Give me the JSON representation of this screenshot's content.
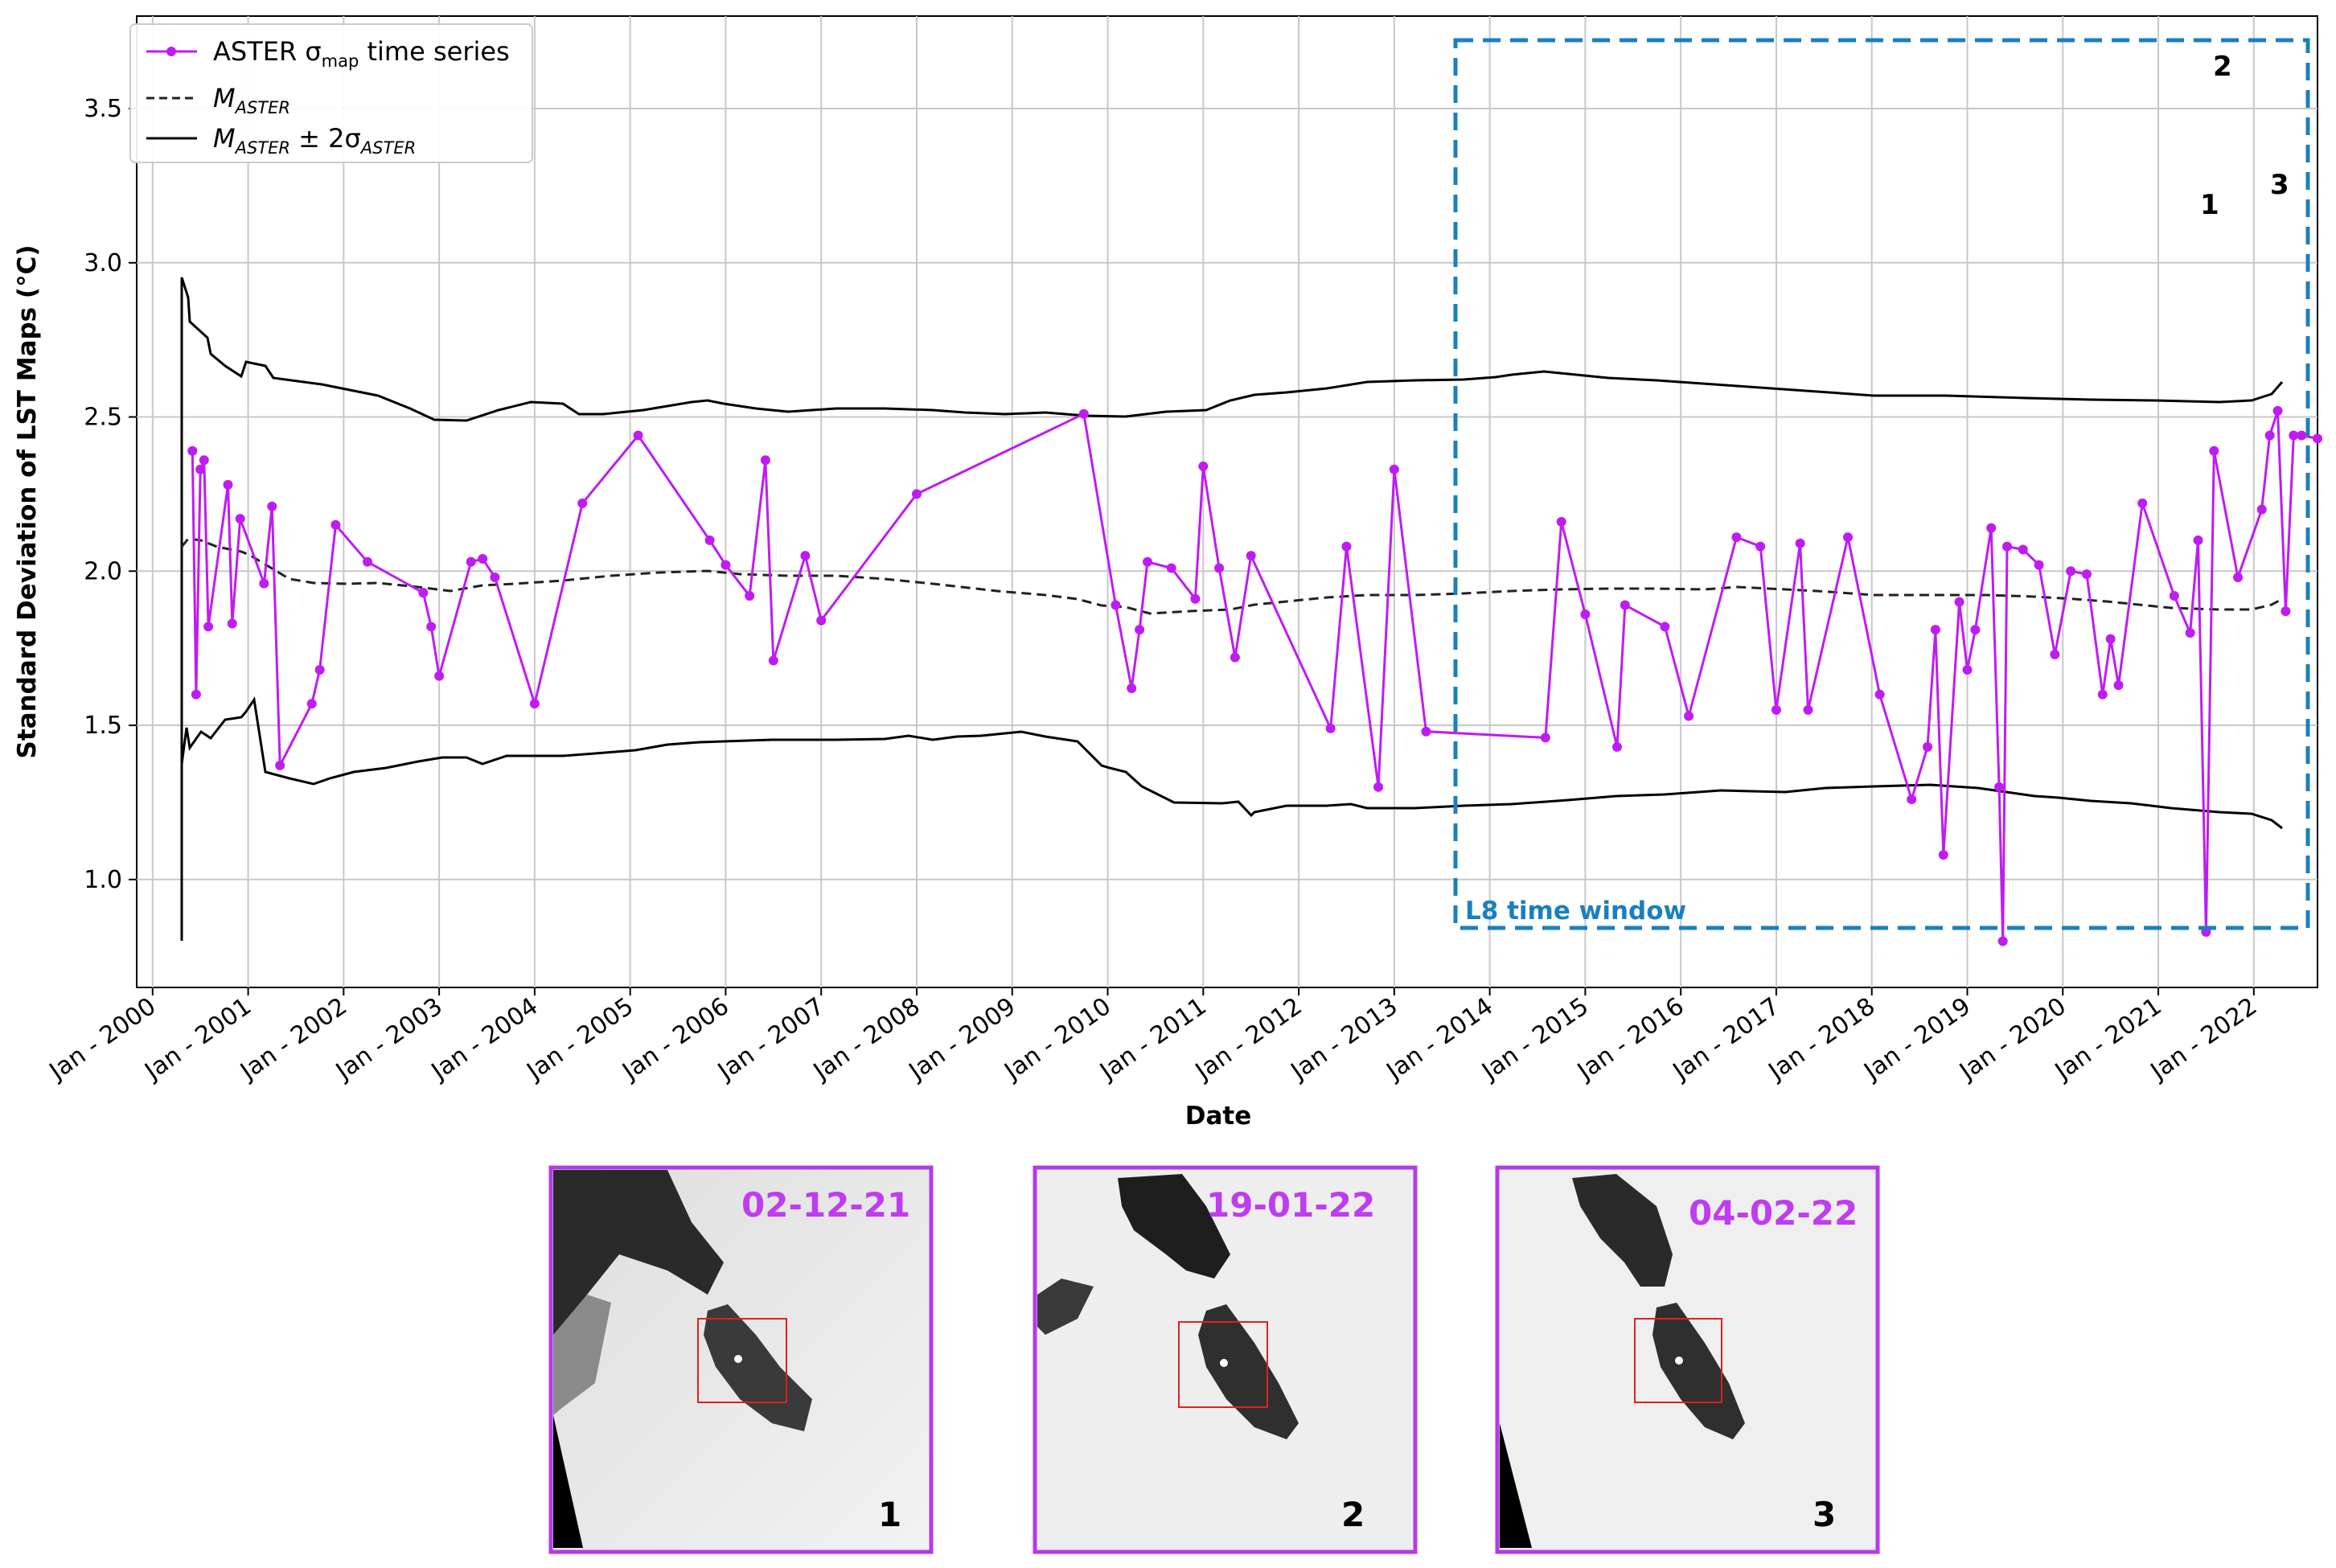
{
  "chart_data": {
    "type": "line",
    "xlabel": "Date",
    "ylabel": "Standard Deviation of LST Maps (°C)",
    "xlim": [
      "1999-11",
      "2022-09"
    ],
    "ylim": [
      0.65,
      3.8
    ],
    "grid": true,
    "legend_position": "top-left",
    "x_ticks": [
      "Jan - 2000",
      "Jan - 2001",
      "Jan - 2002",
      "Jan - 2003",
      "Jan - 2004",
      "Jan - 2005",
      "Jan - 2006",
      "Jan - 2007",
      "Jan - 2008",
      "Jan - 2009",
      "Jan - 2010",
      "Jan - 2011",
      "Jan - 2012",
      "Jan - 2013",
      "Jan - 2014",
      "Jan - 2015",
      "Jan - 2016",
      "Jan - 2017",
      "Jan - 2018",
      "Jan - 2019",
      "Jan - 2020",
      "Jan - 2021",
      "Jan - 2022"
    ],
    "y_ticks": [
      "1.0",
      "1.5",
      "2.0",
      "2.5",
      "3.0",
      "3.5"
    ],
    "legend": [
      {
        "main": "ASTER σ",
        "sub": "map",
        "tail": " time series"
      },
      {
        "main": "M",
        "sub": "ASTER",
        "tail": ""
      },
      {
        "main": "M",
        "sub": "ASTER",
        "tail": " ± 2σ",
        "sub2": "ASTER"
      }
    ],
    "colors": {
      "series": "#bf1cf2",
      "mean": "#222222",
      "bounds": "#000000",
      "window": "#1a7fc0"
    },
    "series": [
      {
        "role": "aster-sigma",
        "points": [
          [
            "2000-06-01",
            2.39
          ],
          [
            "2000-06-15",
            1.6
          ],
          [
            "2000-07-01",
            2.33
          ],
          [
            "2000-07-15",
            2.36
          ],
          [
            "2000-08-01",
            1.82
          ],
          [
            "2000-10-15",
            2.28
          ],
          [
            "2000-11-01",
            1.83
          ],
          [
            "2000-12-01",
            2.17
          ],
          [
            "2001-03-01",
            1.96
          ],
          [
            "2001-04-01",
            2.21
          ],
          [
            "2001-05-01",
            1.37
          ],
          [
            "2001-09-01",
            1.57
          ],
          [
            "2001-10-01",
            1.68
          ],
          [
            "2001-12-01",
            2.15
          ],
          [
            "2002-04-01",
            2.03
          ],
          [
            "2002-11-01",
            1.93
          ],
          [
            "2002-12-01",
            1.82
          ],
          [
            "2003-01-01",
            1.66
          ],
          [
            "2003-05-01",
            2.03
          ],
          [
            "2003-06-15",
            2.04
          ],
          [
            "2003-08-01",
            1.98
          ],
          [
            "2004-01-01",
            1.57
          ],
          [
            "2004-07-01",
            2.22
          ],
          [
            "2005-02-01",
            2.44
          ],
          [
            "2005-11-01",
            2.1
          ],
          [
            "2006-01-01",
            2.02
          ],
          [
            "2006-04-01",
            1.92
          ],
          [
            "2006-06-01",
            2.36
          ],
          [
            "2006-07-01",
            1.71
          ],
          [
            "2006-11-01",
            2.05
          ],
          [
            "2007-01-01",
            1.84
          ],
          [
            "2008-01-01",
            2.25
          ],
          [
            "2009-10-01",
            2.51
          ],
          [
            "2010-02-01",
            1.89
          ],
          [
            "2010-04-01",
            1.62
          ],
          [
            "2010-05-01",
            1.81
          ],
          [
            "2010-06-01",
            2.03
          ],
          [
            "2010-09-01",
            2.01
          ],
          [
            "2010-12-01",
            1.91
          ],
          [
            "2011-01-01",
            2.34
          ],
          [
            "2011-03-01",
            2.01
          ],
          [
            "2011-05-01",
            1.72
          ],
          [
            "2011-07-01",
            2.05
          ],
          [
            "2012-05-01",
            1.49
          ],
          [
            "2012-07-01",
            2.08
          ],
          [
            "2012-11-01",
            1.3
          ],
          [
            "2013-01-01",
            2.33
          ],
          [
            "2013-05-01",
            1.48
          ],
          [
            "2014-08-01",
            1.46
          ],
          [
            "2014-10-01",
            2.16
          ],
          [
            "2015-01-01",
            1.86
          ],
          [
            "2015-05-01",
            1.43
          ],
          [
            "2015-06-01",
            1.89
          ],
          [
            "2015-11-01",
            1.82
          ],
          [
            "2016-02-01",
            1.53
          ],
          [
            "2016-08-01",
            2.11
          ],
          [
            "2016-11-01",
            2.08
          ],
          [
            "2017-01-01",
            1.55
          ],
          [
            "2017-04-01",
            2.09
          ],
          [
            "2017-05-01",
            1.55
          ],
          [
            "2017-10-01",
            2.11
          ],
          [
            "2018-02-01",
            1.6
          ],
          [
            "2018-06-01",
            1.26
          ],
          [
            "2018-08-01",
            1.43
          ],
          [
            "2018-09-01",
            1.81
          ],
          [
            "2018-10-01",
            1.08
          ],
          [
            "2018-12-01",
            1.9
          ],
          [
            "2019-01-01",
            1.68
          ],
          [
            "2019-02-01",
            1.81
          ],
          [
            "2019-04-01",
            2.14
          ],
          [
            "2019-05-01",
            1.3
          ],
          [
            "2019-05-15",
            0.8
          ],
          [
            "2019-06-01",
            2.08
          ],
          [
            "2019-08-01",
            2.07
          ],
          [
            "2019-10-01",
            2.02
          ],
          [
            "2019-12-01",
            1.73
          ],
          [
            "2020-02-01",
            2.0
          ],
          [
            "2020-04-01",
            1.99
          ],
          [
            "2020-06-01",
            1.6
          ],
          [
            "2020-07-01",
            1.78
          ],
          [
            "2020-08-01",
            1.63
          ],
          [
            "2020-11-01",
            2.22
          ],
          [
            "2021-03-01",
            1.92
          ],
          [
            "2021-05-01",
            1.8
          ],
          [
            "2021-06-01",
            2.1
          ],
          [
            "2021-07-01",
            0.83
          ],
          [
            "2021-08-01",
            2.39
          ],
          [
            "2021-11-01",
            1.98
          ],
          [
            "2022-02-01",
            2.2
          ],
          [
            "2022-03-01",
            2.44
          ],
          [
            "2022-04-01",
            2.52
          ],
          [
            "2022-05-01",
            1.87
          ],
          [
            "2022-06-01",
            2.44
          ],
          [
            "2022-07-01",
            2.44
          ],
          [
            "2022-09-01",
            2.43
          ]
        ]
      }
    ],
    "annotations": [
      "1",
      "2",
      "3"
    ],
    "window_label": "L8 time window",
    "thumbnails": [
      {
        "date": "02-12-21",
        "number": "1"
      },
      {
        "date": "19-01-22",
        "number": "2"
      },
      {
        "date": "04-02-22",
        "number": "3"
      }
    ]
  }
}
